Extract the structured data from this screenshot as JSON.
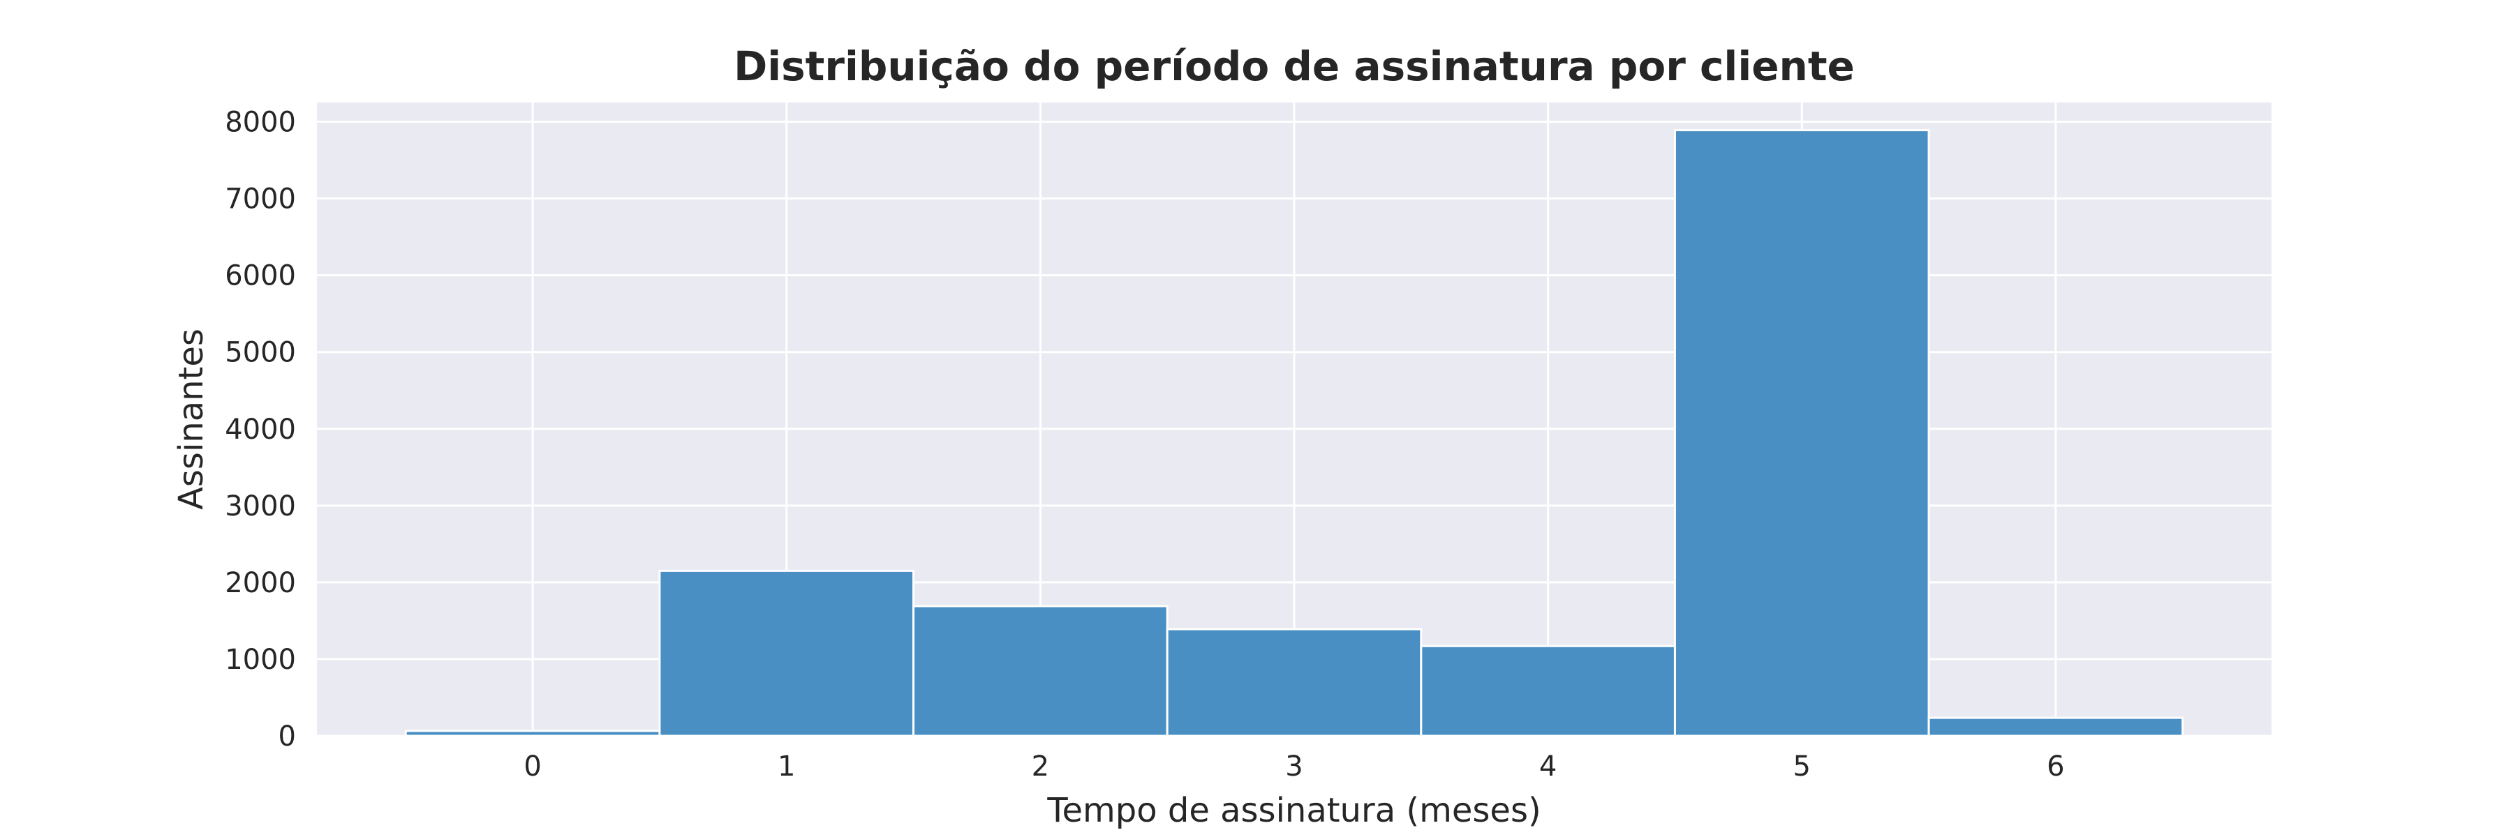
{
  "chart_data": {
    "type": "bar",
    "title": "Distribuição do período de assinatura por cliente",
    "xlabel": "Tempo de assinatura (meses)",
    "ylabel": "Assinantes",
    "categories": [
      "0",
      "1",
      "2",
      "3",
      "4",
      "5",
      "6"
    ],
    "values": [
      65,
      2150,
      1690,
      1390,
      1170,
      7890,
      235
    ],
    "yticks": [
      "0",
      "1000",
      "2000",
      "3000",
      "4000",
      "5000",
      "6000",
      "7000",
      "8000"
    ],
    "ylim": [
      0,
      8250
    ],
    "xlim": [
      -0.85,
      6.85
    ],
    "grid": true,
    "legend": false,
    "colors": {
      "bar": "#4a8fc3",
      "background": "#eaeaf2",
      "grid": "#ffffff"
    }
  }
}
